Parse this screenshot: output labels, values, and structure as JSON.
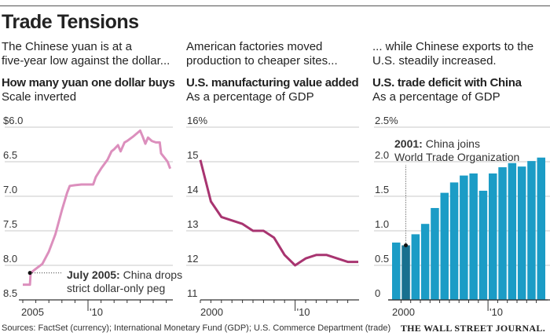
{
  "title": "Trade Tensions",
  "panels": [
    {
      "intro1": "The Chinese yuan is at a",
      "intro2": "five-year low against the dollar...",
      "subtitle": "How many yuan one dollar buys",
      "unit": "Scale inverted"
    },
    {
      "intro1": "American factories moved",
      "intro2": "production to cheaper sites...",
      "subtitle": "U.S. manufacturing value added",
      "unit": "As a percentage of GDP"
    },
    {
      "intro1": "... while Chinese exports to the",
      "intro2": "U.S. steadily increased.",
      "subtitle": "U.S. trade deficit with China",
      "unit": "As a percentage of GDP"
    }
  ],
  "source": "Sources: FactSet (currency); International Monetary Fund (GDP); U.S. Commerce Department (trade)",
  "logo": "THE WALL STREET JOURNAL.",
  "colors": {
    "yuan": "#dc8fbd",
    "manufacturing": "#a83470",
    "bars": "#1b9cc6",
    "highlight_bar": "#17708f",
    "grid": "#c8c8c8"
  },
  "chart_data": [
    {
      "type": "line",
      "title": "How many yuan one dollar buys",
      "subtitle": "Scale inverted",
      "inverted": true,
      "ylim": [
        6.0,
        8.5
      ],
      "yticks": [
        "$6.0",
        "6.5",
        "7.0",
        "7.5",
        "8.0",
        "8.5"
      ],
      "xticks": [
        "2005",
        "'10"
      ],
      "grid": true,
      "x": [
        2005.0,
        2005.55,
        2005.6,
        2006.0,
        2006.5,
        2007.0,
        2007.5,
        2008.0,
        2008.4,
        2008.6,
        2009.0,
        2009.5,
        2010.4,
        2010.6,
        2011.0,
        2011.5,
        2011.8,
        2012.0,
        2012.3,
        2012.5,
        2012.8,
        2013.0,
        2013.5,
        2014.0,
        2014.2,
        2014.4,
        2014.6,
        2014.9,
        2015.2,
        2015.5,
        2015.6,
        2015.9,
        2016.1,
        2016.3
      ],
      "values": [
        8.28,
        8.28,
        8.11,
        8.05,
        7.98,
        7.8,
        7.55,
        7.2,
        6.95,
        6.85,
        6.84,
        6.83,
        6.83,
        6.72,
        6.6,
        6.47,
        6.35,
        6.32,
        6.26,
        6.35,
        6.22,
        6.2,
        6.13,
        6.05,
        6.14,
        6.24,
        6.15,
        6.2,
        6.22,
        6.22,
        6.38,
        6.45,
        6.5,
        6.6
      ],
      "annotation": {
        "bold": "July 2005:",
        "text1": " China drops",
        "text2": "strict dollar-only peg",
        "x": 2005.55,
        "y": 8.11
      }
    },
    {
      "type": "line",
      "title": "U.S. manufacturing value added",
      "subtitle": "As a percentage of GDP",
      "ylim": [
        11,
        16
      ],
      "yticks": [
        "11",
        "12",
        "13",
        "14",
        "15",
        "16%"
      ],
      "xticks": [
        "2000",
        "'10"
      ],
      "grid": true,
      "x": [
        2000,
        2001,
        2002,
        2003,
        2004,
        2005,
        2006,
        2007,
        2008,
        2009,
        2010,
        2011,
        2012,
        2013,
        2014,
        2015
      ],
      "values": [
        15.05,
        13.85,
        13.4,
        13.3,
        13.2,
        13.0,
        13.0,
        12.8,
        12.3,
        12.0,
        12.2,
        12.3,
        12.3,
        12.2,
        12.1,
        12.1
      ]
    },
    {
      "type": "bar",
      "title": "U.S. trade deficit with China",
      "subtitle": "As a percentage of GDP",
      "ylim": [
        0,
        2.5
      ],
      "yticks": [
        "0",
        "0.5",
        "1.0",
        "1.5",
        "2.0",
        "2.5%"
      ],
      "xticks": [
        "2000",
        "'10"
      ],
      "grid": true,
      "categories": [
        2000,
        2001,
        2002,
        2003,
        2004,
        2005,
        2006,
        2007,
        2008,
        2009,
        2010,
        2011,
        2012,
        2013,
        2014,
        2015
      ],
      "values": [
        0.83,
        0.79,
        0.95,
        1.1,
        1.33,
        1.55,
        1.7,
        1.8,
        1.83,
        1.58,
        1.83,
        1.92,
        1.98,
        1.93,
        2.01,
        2.06
      ],
      "highlight": 2001,
      "annotation": {
        "bold": "2001:",
        "text1": " China joins",
        "text2": "World Trade Organization"
      }
    }
  ]
}
